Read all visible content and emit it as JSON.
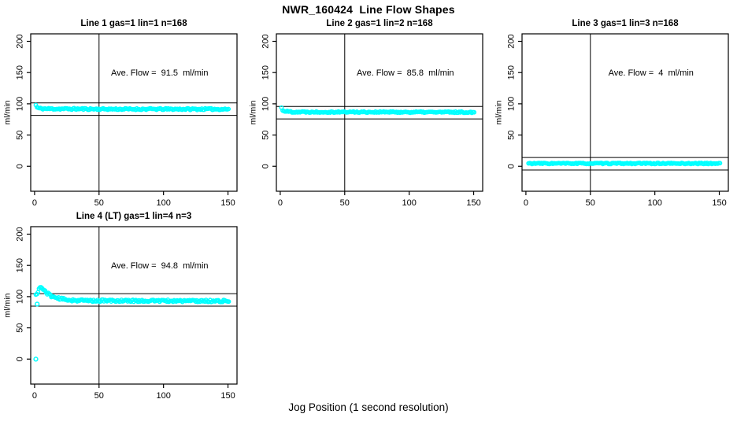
{
  "page": {
    "title": "NWR_160424  Line Flow Shapes",
    "xlabel": "Jog Position (1 second resolution)",
    "background_color": "#ffffff",
    "axis_color": "#000000",
    "point_color": "#00ffff"
  },
  "chart_data": [
    {
      "type": "scatter",
      "title": "Line 1 gas=1 lin=1 n=168",
      "annotation": "Ave. Flow =  91.5  ml/min",
      "ave_flow_ml_min": 91.5,
      "n": 168,
      "ylabel": "ml/min",
      "x_ticks": [
        0,
        50,
        100,
        150
      ],
      "y_ticks": [
        0,
        50,
        100,
        150,
        200
      ],
      "xlim": [
        -3,
        157
      ],
      "ylim": [
        -40,
        212
      ],
      "vline_x": 50,
      "hlines_y": [
        101.5,
        81.5
      ],
      "annotation_pos": [
        97,
        150
      ],
      "x_range": [
        1,
        151
      ],
      "step": 0.9,
      "band_halfwidth": 1.3,
      "seed": 11,
      "profile": [
        [
          1,
          98
        ],
        [
          2,
          94
        ],
        [
          4,
          92.5
        ],
        [
          10,
          92
        ],
        [
          60,
          91.5
        ],
        [
          151,
          91.5
        ]
      ],
      "outliers": []
    },
    {
      "type": "scatter",
      "title": "Line 2 gas=1 lin=2 n=168",
      "annotation": "Ave. Flow =  85.8  ml/min",
      "ave_flow_ml_min": 85.8,
      "n": 168,
      "ylabel": "ml/min",
      "x_ticks": [
        0,
        50,
        100,
        150
      ],
      "y_ticks": [
        0,
        50,
        100,
        150,
        200
      ],
      "xlim": [
        -3,
        157
      ],
      "ylim": [
        -40,
        212
      ],
      "vline_x": 50,
      "hlines_y": [
        95.8,
        75.8
      ],
      "annotation_pos": [
        97,
        150
      ],
      "x_range": [
        1,
        151
      ],
      "step": 0.9,
      "band_halfwidth": 1.1,
      "seed": 22,
      "profile": [
        [
          1,
          93.5
        ],
        [
          2,
          89.5
        ],
        [
          4,
          88
        ],
        [
          10,
          87
        ],
        [
          151,
          86.5
        ]
      ],
      "outliers": []
    },
    {
      "type": "scatter",
      "title": "Line 3 gas=1 lin=3 n=168",
      "annotation": "Ave. Flow =  4  ml/min",
      "ave_flow_ml_min": 4,
      "n": 168,
      "ylabel": "ml/min",
      "x_ticks": [
        0,
        50,
        100,
        150
      ],
      "y_ticks": [
        0,
        50,
        100,
        150,
        200
      ],
      "xlim": [
        -3,
        157
      ],
      "ylim": [
        -40,
        212
      ],
      "vline_x": 50,
      "hlines_y": [
        14,
        -6
      ],
      "annotation_pos": [
        97,
        150
      ],
      "x_range": [
        2,
        151
      ],
      "step": 0.9,
      "band_halfwidth": 0.9,
      "seed": 33,
      "profile": [
        [
          2,
          4.5
        ],
        [
          151,
          4.5
        ]
      ],
      "outliers": []
    },
    {
      "type": "scatter",
      "title": "Line 4 (LT) gas=1 lin=4 n=3",
      "annotation": "Ave. Flow =  94.8  ml/min",
      "ave_flow_ml_min": 94.8,
      "n": 3,
      "ylabel": "ml/min",
      "x_ticks": [
        0,
        50,
        100,
        150
      ],
      "y_ticks": [
        0,
        50,
        100,
        150,
        200
      ],
      "xlim": [
        -3,
        157
      ],
      "ylim": [
        -40,
        212
      ],
      "vline_x": 50,
      "hlines_y": [
        104.8,
        84.8
      ],
      "annotation_pos": [
        97,
        150
      ],
      "x_range": [
        1,
        151
      ],
      "step": 0.8,
      "band_halfwidth": 1.8,
      "seed": 44,
      "profile": [
        [
          1,
          102
        ],
        [
          3,
          110
        ],
        [
          4,
          114
        ],
        [
          5,
          115
        ],
        [
          6,
          113
        ],
        [
          8,
          109
        ],
        [
          10,
          105
        ],
        [
          13,
          101
        ],
        [
          16,
          98.5
        ],
        [
          20,
          96.5
        ],
        [
          25,
          95
        ],
        [
          32,
          94
        ],
        [
          45,
          93.5
        ],
        [
          151,
          93
        ]
      ],
      "outliers": [
        [
          1,
          0
        ],
        [
          2,
          88
        ]
      ]
    }
  ]
}
